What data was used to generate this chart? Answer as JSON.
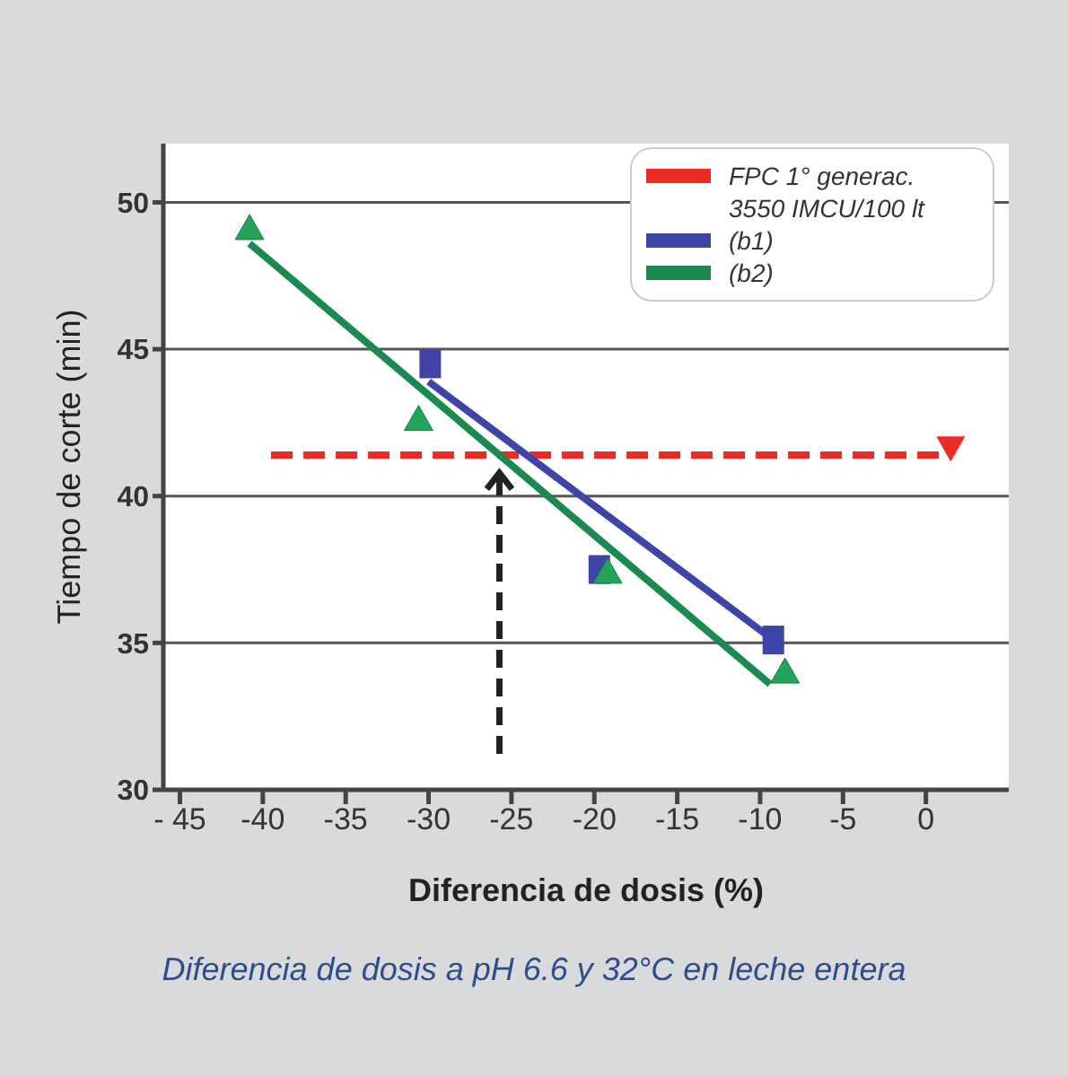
{
  "chart_data": {
    "type": "line",
    "xlabel": "Diferencia de dosis (%)",
    "ylabel": "Tiempo de corte  (min)",
    "annotations": [
      "Diferencia de dosis a pH 6.6 y 32°C en leche entera"
    ],
    "xlim": [
      -46,
      5
    ],
    "ylim": [
      30,
      52
    ],
    "xticks": [
      {
        "value": -45,
        "label": "- 45"
      },
      -40,
      -35,
      -30,
      -25,
      -20,
      -15,
      -10,
      -5,
      0
    ],
    "yticks": [
      30,
      35,
      40,
      45,
      50
    ],
    "grid": "y",
    "legend": "top right",
    "series": [
      {
        "name": "FPC 1° generac. 3550 IMCU/100 lt",
        "color": "#ee2a24",
        "line_style": "dashed",
        "marker": "none",
        "x": [
          -39.5,
          1.5
        ],
        "values": [
          41.4,
          41.4
        ]
      },
      {
        "name": "(b1)",
        "color": "#3f45a8",
        "line_style": "solid",
        "marker": "none",
        "x": [
          -30,
          -9.2
        ],
        "values": [
          43.9,
          35.1
        ]
      },
      {
        "name": "(b2)",
        "color": "#1a8a4f",
        "line_style": "solid",
        "marker": "none",
        "x": [
          -40.8,
          -9.4
        ],
        "values": [
          48.6,
          33.6
        ]
      },
      {
        "type": "scatter",
        "color": "#ee2a24",
        "marker": "triangle",
        "x": [
          1.5
        ],
        "values": [
          41.6
        ]
      },
      {
        "type": "scatter",
        "color": "#3f45a8",
        "marker": "square",
        "x": [
          -29.9,
          -19.7,
          -9.2
        ],
        "values": [
          44.5,
          37.5,
          35.1
        ]
      },
      {
        "type": "scatter",
        "color": "#22a55a",
        "marker": "triangle",
        "x": [
          -40.8,
          -30.6,
          -19.2,
          -8.5
        ],
        "values": [
          49.1,
          42.6,
          37.4,
          34.0
        ]
      }
    ]
  }
}
